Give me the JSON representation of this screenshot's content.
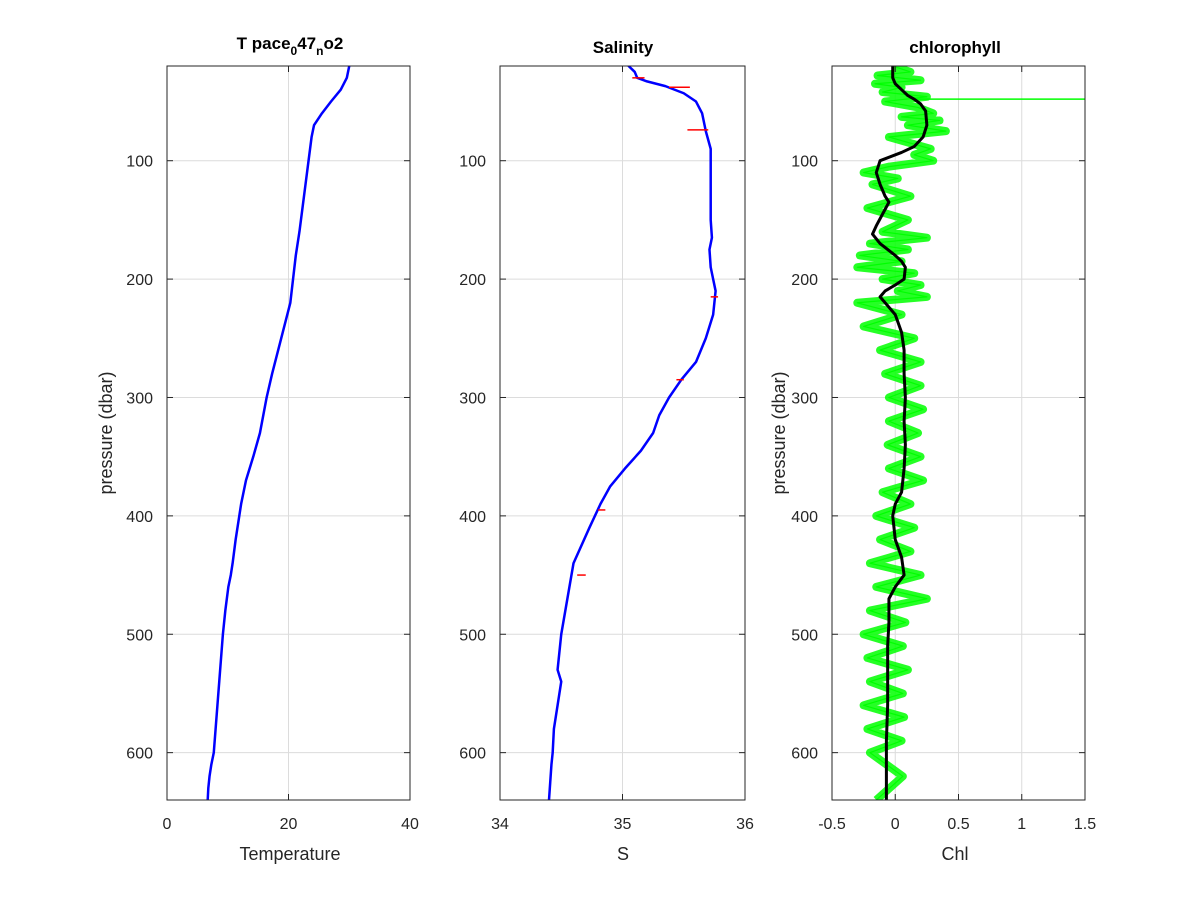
{
  "chart_data": [
    {
      "type": "line",
      "title_main": "T pace",
      "title_sub1": "0",
      "title_mid": "47",
      "title_sub2": "n",
      "title_end": "o2",
      "xlabel": "Temperature",
      "ylabel": "pressure (dbar)",
      "xlim": [
        0,
        40
      ],
      "ylim": [
        640,
        20
      ],
      "y_reversed": true,
      "grid": true,
      "x_ticks": [
        "0",
        "20",
        "40"
      ],
      "y_ticks": [
        "100",
        "200",
        "300",
        "400",
        "500",
        "600"
      ],
      "colors": {
        "line": "#0000ff"
      },
      "series": [
        {
          "x": [
            30.0,
            29.6,
            28.6,
            27.0,
            25.5,
            24.2,
            23.8,
            23.3,
            22.8,
            22.3,
            21.8,
            21.2,
            20.3,
            18.8,
            17.3,
            16.4,
            15.3,
            14.2,
            13.0,
            12.2,
            11.3,
            10.8,
            10.5,
            10.1,
            9.6,
            9.2,
            8.9,
            8.6,
            8.3,
            8.0,
            7.7,
            7.3,
            7.0,
            6.8,
            6.7
          ],
          "y": [
            20,
            30,
            40,
            50,
            60,
            70,
            80,
            100,
            120,
            140,
            160,
            180,
            220,
            250,
            280,
            300,
            330,
            350,
            370,
            390,
            420,
            440,
            450,
            460,
            480,
            500,
            520,
            540,
            560,
            580,
            600,
            610,
            620,
            630,
            640
          ]
        }
      ]
    },
    {
      "type": "line",
      "title": "Salinity",
      "xlabel": "S",
      "xlim": [
        34,
        36
      ],
      "ylim": [
        640,
        20
      ],
      "y_reversed": true,
      "grid": true,
      "x_ticks": [
        "34",
        "35",
        "36"
      ],
      "y_ticks": [
        "100",
        "200",
        "300",
        "400",
        "500",
        "600"
      ],
      "colors": {
        "line": "#0000ff",
        "errorbar": "#ff0000"
      },
      "series": [
        {
          "x": [
            35.05,
            35.1,
            35.12,
            35.2,
            35.35,
            35.5,
            35.6,
            35.65,
            35.68,
            35.72,
            35.72,
            35.72,
            35.72,
            35.73,
            35.71,
            35.72,
            35.74,
            35.76,
            35.74,
            35.68,
            35.6,
            35.48,
            35.38,
            35.3,
            35.25,
            35.15,
            35.02,
            34.9,
            34.82,
            34.73,
            34.6,
            34.55,
            34.5,
            34.48,
            34.47,
            34.5,
            34.47,
            34.44,
            34.43,
            34.42,
            34.41,
            34.4
          ],
          "y": [
            20,
            25,
            30,
            33,
            37,
            43,
            50,
            60,
            75,
            90,
            110,
            130,
            150,
            165,
            175,
            190,
            200,
            210,
            230,
            250,
            270,
            285,
            300,
            315,
            330,
            345,
            360,
            375,
            390,
            410,
            440,
            470,
            500,
            520,
            530,
            540,
            560,
            580,
            600,
            610,
            625,
            640
          ]
        }
      ],
      "errorbars": [
        {
          "y": 30,
          "x_low": 35.08,
          "x_high": 35.18
        },
        {
          "y": 38,
          "x_low": 35.38,
          "x_high": 35.55
        },
        {
          "y": 74,
          "x_low": 35.53,
          "x_high": 35.7
        },
        {
          "y": 215,
          "x_low": 35.72,
          "x_high": 35.78
        },
        {
          "y": 285,
          "x_low": 35.44,
          "x_high": 35.5
        },
        {
          "y": 395,
          "x_low": 34.8,
          "x_high": 34.86
        },
        {
          "y": 450,
          "x_low": 34.63,
          "x_high": 34.7
        }
      ]
    },
    {
      "type": "line",
      "title": "chlorophyll",
      "xlabel": "Chl",
      "ylabel": "pressure (dbar)",
      "xlim": [
        -0.5,
        1.5
      ],
      "ylim": [
        640,
        20
      ],
      "y_reversed": true,
      "grid": true,
      "x_ticks": [
        "-0.5",
        "0",
        "0.5",
        "1",
        "1.5"
      ],
      "y_ticks": [
        "100",
        "200",
        "300",
        "400",
        "500",
        "600"
      ],
      "colors": {
        "raw": "#00ff00",
        "smooth": "#000000"
      },
      "series": [
        {
          "name": "raw",
          "x": [
            -0.02,
            0.12,
            -0.14,
            0.2,
            -0.16,
            0.05,
            -0.1,
            0.25,
            -0.08,
            0.18,
            0.3,
            0.05,
            0.35,
            0.1,
            0.4,
            -0.05,
            1.5,
            0.28,
            0.15,
            0.3,
            -0.05,
            -0.25,
            0.02,
            -0.18,
            0.12,
            -0.22,
            0.1,
            -0.1,
            0.25,
            -0.2,
            0.1,
            -0.28,
            0.05,
            -0.3,
            0.15,
            -0.1,
            0.2,
            0.02,
            0.25,
            -0.3,
            0.05,
            -0.25,
            0.15,
            -0.12,
            0.2,
            -0.08,
            0.2,
            -0.05,
            0.22,
            -0.05,
            0.18,
            -0.06,
            0.2,
            -0.05,
            0.22,
            -0.1,
            0.12,
            -0.15,
            0.15,
            -0.12,
            0.12,
            -0.2,
            0.2,
            -0.15,
            0.25,
            -0.2,
            0.08,
            -0.25,
            0.06,
            -0.22,
            0.1,
            -0.2,
            0.06,
            -0.25,
            0.07,
            -0.22,
            0.05,
            -0.2,
            0.06,
            -0.15
          ],
          "y": [
            20,
            25,
            28,
            32,
            35,
            38,
            42,
            46,
            50,
            55,
            60,
            63,
            66,
            70,
            75,
            80,
            48,
            90,
            95,
            100,
            105,
            110,
            115,
            120,
            130,
            140,
            150,
            160,
            165,
            170,
            175,
            180,
            185,
            190,
            195,
            200,
            205,
            210,
            215,
            220,
            230,
            240,
            250,
            260,
            270,
            280,
            290,
            300,
            310,
            320,
            330,
            340,
            350,
            360,
            370,
            380,
            390,
            400,
            410,
            420,
            430,
            440,
            450,
            460,
            470,
            480,
            490,
            500,
            510,
            520,
            530,
            540,
            550,
            560,
            570,
            580,
            590,
            600,
            620,
            640
          ]
        },
        {
          "name": "smooth",
          "x": [
            -0.02,
            -0.02,
            0.0,
            0.05,
            0.1,
            0.15,
            0.2,
            0.24,
            0.25,
            0.22,
            0.15,
            0.05,
            -0.12,
            -0.15,
            -0.12,
            -0.08,
            -0.05,
            -0.1,
            -0.15,
            -0.18,
            -0.12,
            0.0,
            0.05,
            0.08,
            0.07,
            0.0,
            -0.08,
            -0.12,
            -0.08,
            0.0,
            0.05,
            0.07,
            0.07,
            0.08,
            0.07,
            0.08,
            0.07,
            0.05,
            0.0,
            -0.02,
            0.0,
            0.05,
            0.07,
            0.0,
            -0.05,
            -0.05,
            -0.06,
            -0.06,
            -0.06,
            -0.07,
            -0.07,
            -0.07
          ],
          "y": [
            20,
            30,
            35,
            40,
            45,
            48,
            52,
            58,
            70,
            80,
            88,
            93,
            100,
            110,
            120,
            130,
            135,
            145,
            155,
            162,
            170,
            180,
            185,
            190,
            200,
            205,
            210,
            215,
            220,
            230,
            245,
            260,
            280,
            300,
            320,
            340,
            360,
            380,
            390,
            400,
            420,
            435,
            450,
            460,
            470,
            490,
            510,
            530,
            560,
            590,
            620,
            640
          ]
        }
      ]
    }
  ]
}
